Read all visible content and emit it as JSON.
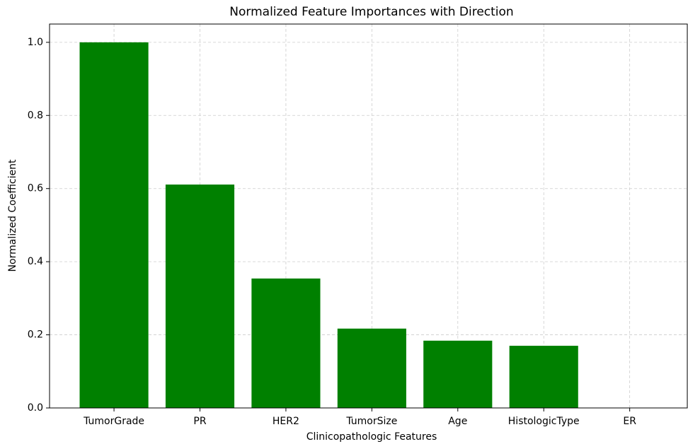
{
  "chart_data": {
    "type": "bar",
    "title": "Normalized Feature Importances with Direction",
    "xlabel": "Clinicopathologic Features",
    "ylabel": "Normalized Coefficient",
    "categories": [
      "TumorGrade",
      "PR",
      "HER2",
      "TumorSize",
      "Age",
      "HistologicType",
      "ER"
    ],
    "values": [
      1.0,
      0.611,
      0.354,
      0.217,
      0.184,
      0.17,
      0
    ],
    "color": "#008000",
    "ylim": [
      0,
      1.05
    ],
    "yticks": [
      {
        "value": 0,
        "label": "0.0"
      },
      0.2,
      0.4,
      0.6,
      0.8,
      {
        "value": 1,
        "label": "1.0"
      }
    ],
    "grid": true
  }
}
